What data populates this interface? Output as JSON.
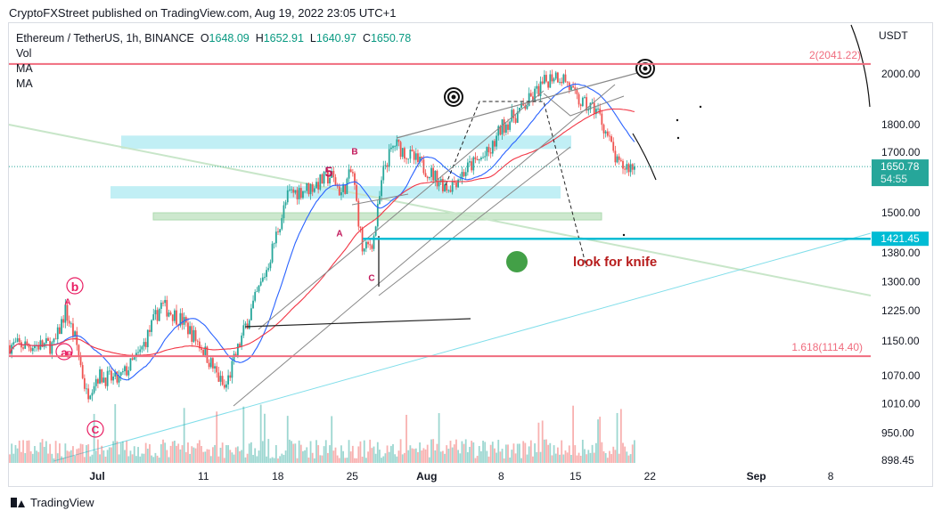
{
  "header": {
    "published": "CryptoFXStreet published on TradingView.com, Aug 19, 2022 23:05 UTC+1"
  },
  "legend": {
    "symbol": "Ethereum / TetherUS, 1h, BINANCE",
    "o_label": "O",
    "o": "1648.09",
    "h_label": "H",
    "h": "1652.91",
    "l_label": "L",
    "l": "1640.97",
    "c_label": "C",
    "c": "1650.78",
    "indicators": [
      "Vol",
      "MA",
      "MA"
    ]
  },
  "footer": {
    "brand": "TradingView"
  },
  "colors": {
    "up": "#26a69a",
    "down": "#ef5350",
    "ma_fast": "#2962ff",
    "ma_slow": "#f23645",
    "fib": "#f06c7e",
    "support": "#00bcd4"
  },
  "chart_data": {
    "type": "candlestick",
    "yaxis_title": "USDT",
    "y_scale": "log",
    "ylim": [
      890,
      2200
    ],
    "y_ticks": [
      898.45,
      950,
      1010,
      1070,
      1150,
      1225,
      1300,
      1380,
      1500,
      1700,
      1800,
      2000
    ],
    "x_ticks": [
      "Jul",
      "11",
      "18",
      "25",
      "Aug",
      "8",
      "15",
      "22",
      "Sep",
      "8"
    ],
    "price_path": [
      [
        "Jun 27",
        1140
      ],
      [
        "Jun 28",
        1225
      ],
      [
        "Jun 29",
        1150
      ],
      [
        "Jun 30",
        1030
      ],
      [
        "Jul 1",
        1070
      ],
      [
        "Jul 3",
        1060
      ],
      [
        "Jul 5",
        1120
      ],
      [
        "Jul 7",
        1240
      ],
      [
        "Jul 9",
        1200
      ],
      [
        "Jul 11",
        1130
      ],
      [
        "Jul 13",
        1040
      ],
      [
        "Jul 15",
        1190
      ],
      [
        "Jul 17",
        1340
      ],
      [
        "Jul 18",
        1450
      ],
      [
        "Jul 19",
        1560
      ],
      [
        "Jul 21",
        1580
      ],
      [
        "Jul 23",
        1620
      ],
      [
        "Jul 24",
        1560
      ],
      [
        "Jul 25",
        1640
      ],
      [
        "Jul 26",
        1380
      ],
      [
        "Jul 27",
        1420
      ],
      [
        "Jul 28",
        1650
      ],
      [
        "Jul 29",
        1730
      ],
      [
        "Aug 1",
        1640
      ],
      [
        "Aug 3",
        1580
      ],
      [
        "Aug 5",
        1650
      ],
      [
        "Aug 7",
        1700
      ],
      [
        "Aug 8",
        1790
      ],
      [
        "Aug 10",
        1860
      ],
      [
        "Aug 12",
        1960
      ],
      [
        "Aug 13",
        2000
      ],
      [
        "Aug 14",
        1980
      ],
      [
        "Aug 15",
        1900
      ],
      [
        "Aug 16",
        1870
      ],
      [
        "Aug 17",
        1860
      ],
      [
        "Aug 18",
        1760
      ],
      [
        "Aug 19",
        1650.78
      ]
    ],
    "levels": [
      {
        "label": "2(2041.22)",
        "value": 2041.22
      },
      {
        "label": "1.618(1114.40)",
        "value": 1114.4
      },
      {
        "label": "1421.45",
        "value": 1421.45
      }
    ],
    "current_price": "1650.78",
    "countdown": "54:55",
    "wave_labels": [
      "5",
      "B",
      "A",
      "C",
      "b",
      "A",
      "a",
      "B",
      "C"
    ],
    "annotation": "look for knife"
  }
}
